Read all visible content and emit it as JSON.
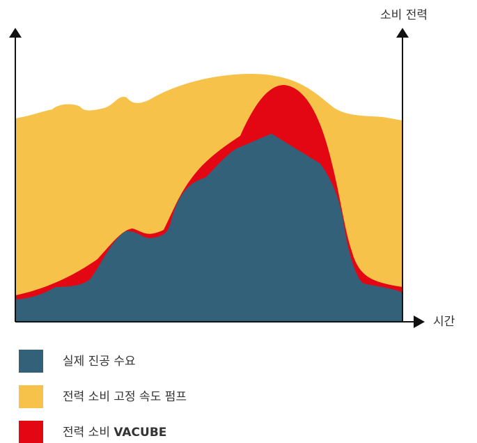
{
  "axes": {
    "y_label": "소비 전력",
    "x_label": "시간"
  },
  "legend": [
    {
      "label": "실제 진공 수요",
      "color": "#33617a"
    },
    {
      "label": "전력 소비 고정 속도 펌프",
      "color": "#f6c24a"
    },
    {
      "label": "전력 소비 ",
      "bold": "VACUBE",
      "color": "#e30613"
    }
  ]
}
